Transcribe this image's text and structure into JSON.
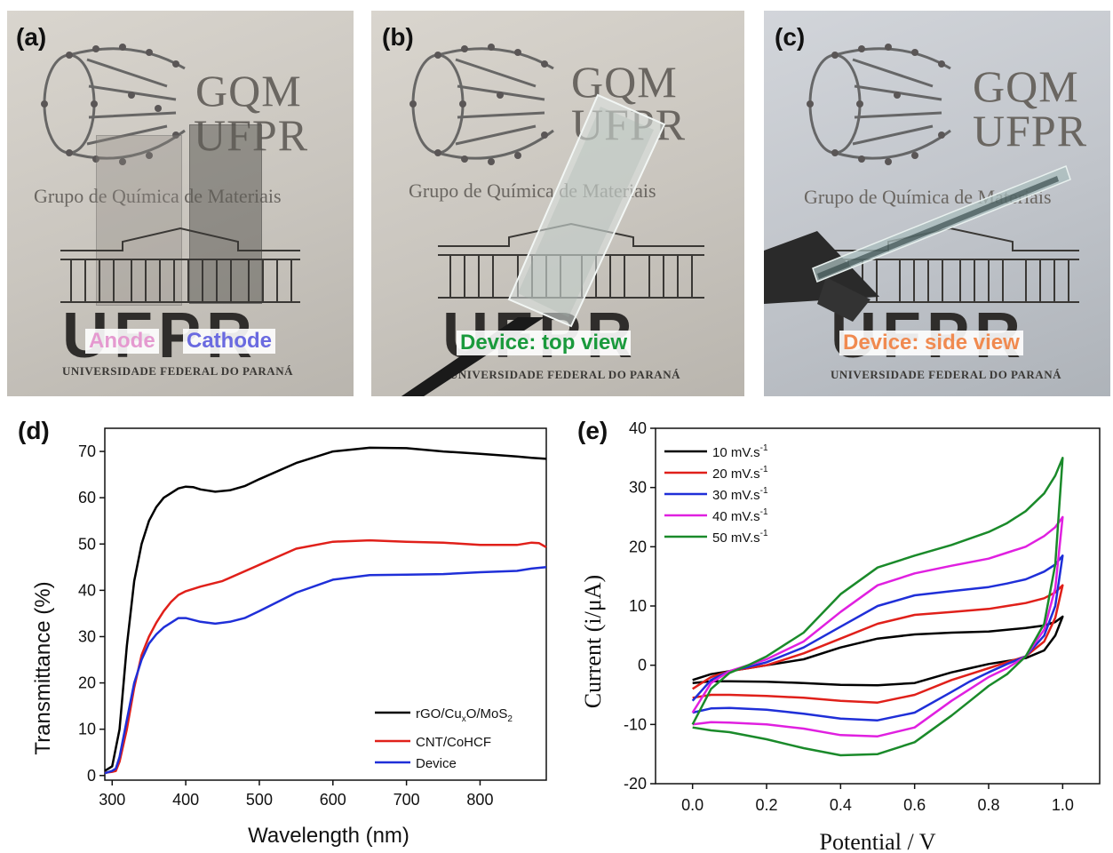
{
  "photos": [
    {
      "letter": "(a)",
      "logo_line1": "GQM",
      "logo_line2": "UFPR",
      "group_name": "Grupo de Química de Materiais",
      "university": "UNIVERSIDADE FEDERAL DO PARANÁ",
      "labels": [
        {
          "text": "Anode",
          "color": "#e59ad0"
        },
        {
          "text": "Cathode",
          "color": "#6a6ae0"
        }
      ]
    },
    {
      "letter": "(b)",
      "logo_line1": "GQM",
      "logo_line2": "UFPR",
      "group_name": "Grupo de Química de Materiais",
      "university": "UNIVERSIDADE FEDERAL DO PARANÁ",
      "labels": [
        {
          "text": "Device: top view",
          "color": "#1a9a3c"
        }
      ]
    },
    {
      "letter": "(c)",
      "logo_line1": "GQM",
      "logo_line2": "UFPR",
      "group_name": "Grupo de Química de Materiais",
      "university": "UNIVERSIDADE FEDERAL DO PARANÁ",
      "labels": [
        {
          "text": "Device: side view",
          "color": "#f08a50"
        }
      ]
    }
  ],
  "chart_data": [
    {
      "panel": "(d)",
      "type": "line",
      "xlabel": "Wavelength (nm)",
      "ylabel": "Transmittance (%)",
      "xlim": [
        290,
        890
      ],
      "ylim": [
        -1,
        75
      ],
      "xticks": [
        300,
        400,
        500,
        600,
        700,
        800
      ],
      "yticks": [
        0,
        10,
        20,
        30,
        40,
        50,
        60,
        70
      ],
      "legend_position": "bottom-right",
      "series": [
        {
          "name": "rGO/Cu",
          "name_sub": "x",
          "name_mid": "O/MoS",
          "name_sub2": "2",
          "color": "#000000",
          "x": [
            290,
            300,
            310,
            320,
            330,
            340,
            350,
            360,
            370,
            380,
            390,
            400,
            410,
            420,
            440,
            460,
            480,
            500,
            550,
            600,
            650,
            700,
            750,
            800,
            850,
            870,
            890
          ],
          "y": [
            1,
            2,
            10,
            28,
            42,
            50,
            55,
            58,
            60,
            61,
            62,
            62.4,
            62.3,
            61.8,
            61.3,
            61.6,
            62.5,
            64,
            67.5,
            70,
            70.8,
            70.7,
            70,
            69.5,
            68.9,
            68.6,
            68.4
          ]
        },
        {
          "name": "CNT/CoHCF",
          "color": "#e0201a",
          "x": [
            290,
            300,
            305,
            310,
            320,
            330,
            340,
            350,
            360,
            370,
            380,
            390,
            400,
            420,
            450,
            500,
            550,
            600,
            650,
            700,
            750,
            800,
            850,
            870,
            880,
            890
          ],
          "y": [
            0.6,
            0.8,
            1,
            3,
            10,
            19,
            26,
            30,
            33,
            35.5,
            37.5,
            39,
            39.8,
            40.8,
            42,
            45.5,
            49,
            50.5,
            50.8,
            50.5,
            50.3,
            49.8,
            49.8,
            50.3,
            50.2,
            49.3
          ]
        },
        {
          "name": "Device",
          "color": "#1f2fd8",
          "x": [
            290,
            300,
            305,
            310,
            320,
            330,
            340,
            350,
            360,
            370,
            380,
            390,
            400,
            410,
            420,
            440,
            460,
            480,
            500,
            550,
            600,
            650,
            700,
            750,
            800,
            850,
            870,
            890
          ],
          "y": [
            0.5,
            1,
            1.5,
            4,
            12,
            20,
            25,
            28.5,
            30.5,
            32,
            33,
            34,
            34,
            33.6,
            33.2,
            32.8,
            33.2,
            34,
            35.5,
            39.5,
            42.3,
            43.3,
            43.4,
            43.5,
            43.9,
            44.2,
            44.7,
            45
          ]
        }
      ]
    },
    {
      "panel": "(e)",
      "type": "line",
      "xlabel": "Potential / V",
      "ylabel": "Current (i/μA)",
      "xlim": [
        -0.1,
        1.1
      ],
      "ylim": [
        -20,
        40
      ],
      "xticks": [
        0.0,
        0.2,
        0.4,
        0.6,
        0.8,
        1.0
      ],
      "yticks": [
        -20,
        -10,
        0,
        10,
        20,
        30,
        40
      ],
      "xtick_labels": [
        "0.0",
        "0.2",
        "0.4",
        "0.6",
        "0.8",
        "1.0"
      ],
      "legend_position": "top-left",
      "series": [
        {
          "name": "10 mV.s",
          "name_sup": "-1",
          "color": "#000000",
          "anodic": {
            "x": [
              0,
              0.05,
              0.1,
              0.15,
              0.2,
              0.3,
              0.4,
              0.5,
              0.6,
              0.7,
              0.8,
              0.85,
              0.9,
              0.95,
              0.98,
              1.0
            ],
            "y": [
              -2.5,
              -1.5,
              -1,
              -0.5,
              0,
              1,
              3,
              4.5,
              5.2,
              5.5,
              5.7,
              6,
              6.3,
              6.7,
              7.3,
              8.2
            ]
          },
          "cathodic": {
            "x": [
              1.0,
              0.98,
              0.95,
              0.9,
              0.85,
              0.8,
              0.75,
              0.7,
              0.6,
              0.5,
              0.4,
              0.3,
              0.2,
              0.1,
              0.05,
              0
            ],
            "y": [
              8.2,
              5,
              2.5,
              1.2,
              0.7,
              0.2,
              -0.5,
              -1.2,
              -3,
              -3.4,
              -3.3,
              -3,
              -2.8,
              -2.7,
              -2.7,
              -3
            ]
          }
        },
        {
          "name": "20 mV.s",
          "name_sup": "-1",
          "color": "#e0201a",
          "anodic": {
            "x": [
              0,
              0.05,
              0.1,
              0.15,
              0.2,
              0.3,
              0.4,
              0.5,
              0.6,
              0.7,
              0.8,
              0.85,
              0.9,
              0.95,
              0.98,
              1.0
            ],
            "y": [
              -4,
              -2,
              -1,
              -0.5,
              0,
              2,
              4.5,
              7,
              8.5,
              9,
              9.5,
              10,
              10.5,
              11.3,
              12.3,
              13.5
            ]
          },
          "cathodic": {
            "x": [
              1.0,
              0.98,
              0.95,
              0.9,
              0.85,
              0.8,
              0.75,
              0.7,
              0.6,
              0.5,
              0.4,
              0.3,
              0.2,
              0.1,
              0.05,
              0
            ],
            "y": [
              13.5,
              8,
              4,
              1.5,
              0.5,
              -0.5,
              -1.5,
              -2.5,
              -5,
              -6.3,
              -6,
              -5.5,
              -5.2,
              -5,
              -5,
              -5.5
            ]
          }
        },
        {
          "name": "30 mV.s",
          "name_sup": "-1",
          "color": "#1f2fd8",
          "anodic": {
            "x": [
              0,
              0.05,
              0.1,
              0.15,
              0.2,
              0.3,
              0.4,
              0.5,
              0.6,
              0.7,
              0.8,
              0.85,
              0.9,
              0.95,
              0.98,
              1.0
            ],
            "y": [
              -6,
              -2.5,
              -1,
              -0.3,
              0.5,
              3,
              6.5,
              10,
              11.8,
              12.5,
              13.2,
              13.8,
              14.5,
              15.8,
              17,
              18.5
            ]
          },
          "cathodic": {
            "x": [
              1.0,
              0.98,
              0.95,
              0.9,
              0.85,
              0.8,
              0.75,
              0.7,
              0.6,
              0.5,
              0.4,
              0.3,
              0.2,
              0.1,
              0.05,
              0
            ],
            "y": [
              18.5,
              10,
              5,
              1.5,
              0.2,
              -1.2,
              -2.7,
              -4.5,
              -8,
              -9.3,
              -9,
              -8.2,
              -7.5,
              -7.2,
              -7.3,
              -8
            ]
          }
        },
        {
          "name": "40 mV.s",
          "name_sup": "-1",
          "color": "#e020e0",
          "anodic": {
            "x": [
              0,
              0.05,
              0.1,
              0.15,
              0.2,
              0.3,
              0.4,
              0.5,
              0.6,
              0.7,
              0.8,
              0.85,
              0.9,
              0.95,
              0.98,
              1.0
            ],
            "y": [
              -8,
              -3,
              -1,
              0,
              1,
              4,
              9,
              13.5,
              15.5,
              16.8,
              18,
              19,
              20,
              21.8,
              23.3,
              25
            ]
          },
          "cathodic": {
            "x": [
              1.0,
              0.98,
              0.95,
              0.9,
              0.85,
              0.8,
              0.75,
              0.7,
              0.6,
              0.5,
              0.4,
              0.3,
              0.2,
              0.1,
              0.05,
              0
            ],
            "y": [
              25,
              13,
              6,
              1.5,
              -0.5,
              -2,
              -4,
              -6,
              -10.5,
              -12,
              -11.8,
              -10.7,
              -10,
              -9.7,
              -9.6,
              -10
            ]
          }
        },
        {
          "name": "50 mV.s",
          "name_sup": "-1",
          "color": "#1a8a2a",
          "anodic": {
            "x": [
              0,
              0.05,
              0.1,
              0.15,
              0.2,
              0.3,
              0.4,
              0.5,
              0.6,
              0.7,
              0.8,
              0.85,
              0.9,
              0.95,
              0.98,
              1.0
            ],
            "y": [
              -10,
              -4,
              -1.3,
              0,
              1.5,
              5.5,
              12,
              16.5,
              18.5,
              20.3,
              22.5,
              24,
              26,
              29,
              32,
              35
            ]
          },
          "cathodic": {
            "x": [
              1.0,
              0.98,
              0.95,
              0.9,
              0.85,
              0.8,
              0.75,
              0.7,
              0.6,
              0.5,
              0.4,
              0.3,
              0.2,
              0.1,
              0.05,
              0
            ],
            "y": [
              35,
              17,
              7,
              1.5,
              -1.5,
              -3.5,
              -6,
              -8.5,
              -13,
              -15,
              -15.2,
              -14,
              -12.5,
              -11.3,
              -11,
              -10.5
            ]
          }
        }
      ]
    }
  ]
}
